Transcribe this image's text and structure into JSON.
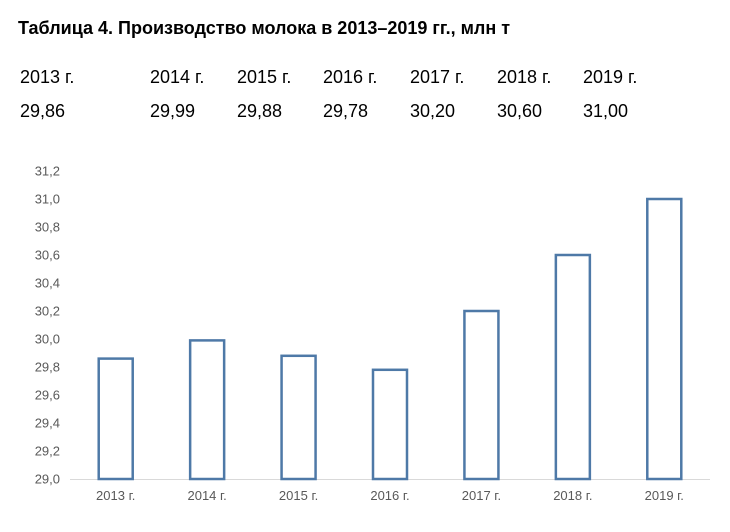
{
  "title": "Таблица 4. Производство молока в 2013–2019 гг., млн т",
  "table": {
    "headers": [
      "2013 г.",
      "2014 г.",
      "2015 г.",
      "2016 г.",
      "2017 г.",
      "2018 г.",
      "2019 г."
    ],
    "values": [
      "29,86",
      "29,99",
      "29,88",
      "29,78",
      "30,20",
      "30,60",
      "31,00"
    ]
  },
  "chart_data": {
    "type": "bar",
    "title": "",
    "xlabel": "",
    "ylabel": "",
    "categories": [
      "2013 г.",
      "2014 г.",
      "2015 г.",
      "2016 г.",
      "2017 г.",
      "2018 г.",
      "2019 г."
    ],
    "values": [
      29.86,
      29.99,
      29.88,
      29.78,
      30.2,
      30.6,
      31.0
    ],
    "ylim": [
      29.0,
      31.2
    ],
    "yticks": [
      29.0,
      29.2,
      29.4,
      29.6,
      29.8,
      30.0,
      30.2,
      30.4,
      30.6,
      30.8,
      31.0,
      31.2
    ],
    "ytick_labels": [
      "29,0",
      "29,2",
      "29,4",
      "29,6",
      "29,8",
      "30,0",
      "30,2",
      "30,4",
      "30,6",
      "30,8",
      "31,0",
      "31,2"
    ],
    "grid": false,
    "legend": "none",
    "bar_fill": "#ffffff",
    "bar_stroke": "#4e79a7",
    "axis_color": "#d9d9d9"
  }
}
